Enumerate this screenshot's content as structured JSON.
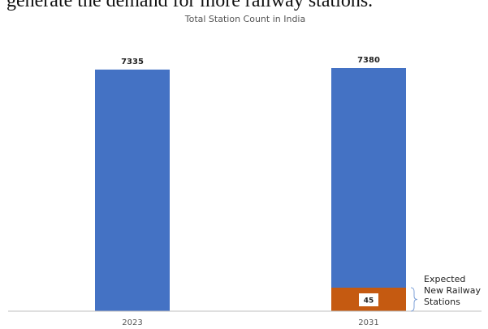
{
  "page_text": "generate the demand for more railway stations.",
  "chart_data": {
    "type": "bar",
    "title": "Total Station Count in India",
    "categories": [
      "2023",
      "2031"
    ],
    "total_labels": [
      "7335",
      "7380"
    ],
    "series": [
      {
        "values": [
          7335,
          7335
        ],
        "color": "#4472C4"
      },
      {
        "values": [
          0,
          45
        ],
        "color": "#C55A11"
      }
    ],
    "segment_label": "45",
    "annotation": [
      "Expected",
      "New Railway",
      "Stations"
    ],
    "xlabel": "",
    "ylabel": ""
  }
}
